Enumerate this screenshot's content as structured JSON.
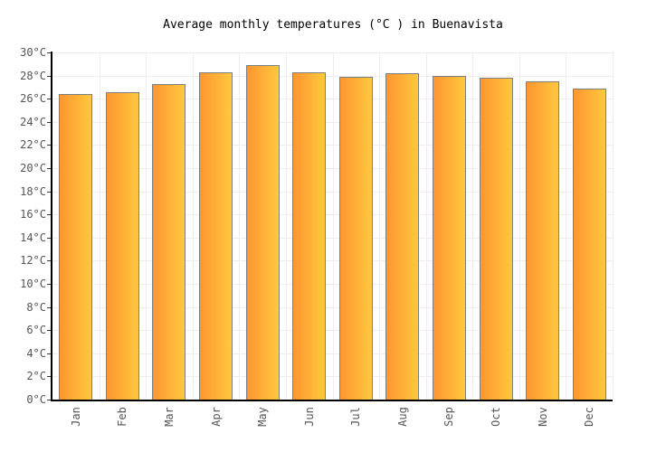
{
  "title": "Average monthly temperatures (°C ) in Buenavista",
  "chart_data": {
    "type": "bar",
    "title": "Average monthly temperatures (°C ) in Buenavista",
    "categories": [
      "Jan",
      "Feb",
      "Mar",
      "Apr",
      "May",
      "Jun",
      "Jul",
      "Aug",
      "Sep",
      "Oct",
      "Nov",
      "Dec"
    ],
    "values": [
      26.4,
      26.6,
      27.3,
      28.3,
      28.9,
      28.3,
      27.9,
      28.2,
      28.0,
      27.8,
      27.5,
      26.9
    ],
    "xlabel": "",
    "ylabel": "",
    "ylim": [
      0,
      30
    ],
    "ytick_step": 2,
    "ytick_suffix": "°C",
    "ytick_labels": [
      "0°C",
      "2°C",
      "4°C",
      "6°C",
      "8°C",
      "10°C",
      "12°C",
      "14°C",
      "16°C",
      "18°C",
      "20°C",
      "22°C",
      "24°C",
      "26°C",
      "28°C",
      "30°C"
    ],
    "grid": true,
    "legend_position": "none",
    "colors": {
      "background": "#FFFFFF",
      "title": "#000000",
      "axis_line": "#000000",
      "tick_label": "#555555",
      "gridline": "#EDEDED",
      "bar_gradient_start": "#FE9630",
      "bar_gradient_end": "#FFC83E",
      "bar_border": "#7F7F7F"
    }
  }
}
